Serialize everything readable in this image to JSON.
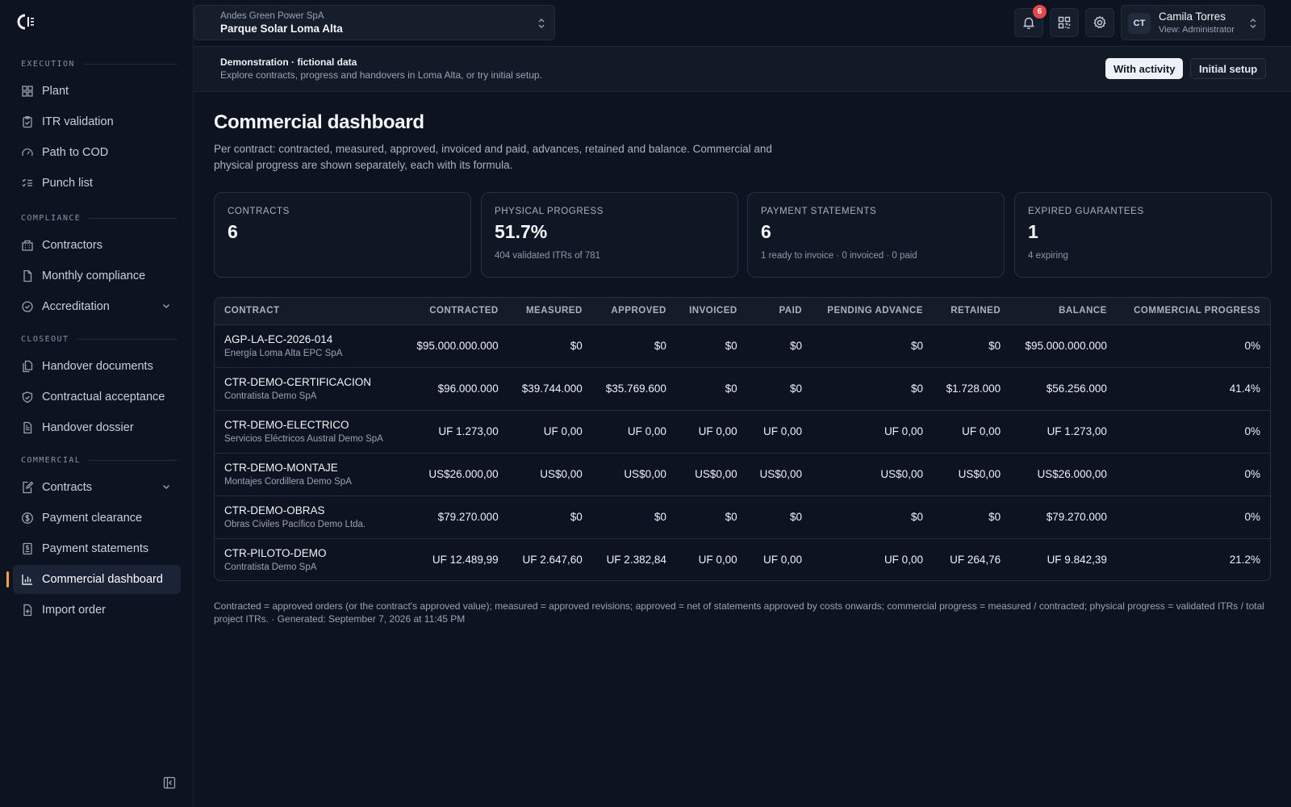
{
  "sidebar": {
    "sections": [
      {
        "title": "EXECUTION",
        "items": [
          {
            "label": "Plant",
            "icon": "grid-icon"
          },
          {
            "label": "ITR validation",
            "icon": "clipboard-check-icon"
          },
          {
            "label": "Path to COD",
            "icon": "gauge-icon"
          },
          {
            "label": "Punch list",
            "icon": "checklist-icon"
          }
        ]
      },
      {
        "title": "COMPLIANCE",
        "items": [
          {
            "label": "Contractors",
            "icon": "building-icon"
          },
          {
            "label": "Monthly compliance",
            "icon": "file-icon"
          },
          {
            "label": "Accreditation",
            "icon": "check-circle-icon"
          }
        ]
      },
      {
        "title": "CLOSEOUT",
        "items": [
          {
            "label": "Handover documents",
            "icon": "documents-icon"
          },
          {
            "label": "Contractual acceptance",
            "icon": "handshake-icon"
          },
          {
            "label": "Handover dossier",
            "icon": "file-text-icon"
          }
        ]
      },
      {
        "title": "COMMERCIAL",
        "items": [
          {
            "label": "Contracts",
            "icon": "file-edit-icon"
          },
          {
            "label": "Payment clearance",
            "icon": "dollar-circle-icon"
          },
          {
            "label": "Payment statements",
            "icon": "receipt-icon"
          },
          {
            "label": "Commercial dashboard",
            "icon": "bar-chart-icon"
          },
          {
            "label": "Import order",
            "icon": "file-plus-icon"
          }
        ]
      }
    ]
  },
  "header": {
    "organization": "Andes Green Power SpA",
    "project": "Parque Solar Loma Alta",
    "notifications_count": "6",
    "user": {
      "initials": "CT",
      "name": "Camila Torres",
      "role": "View: Administrator"
    }
  },
  "banner": {
    "title": "Demonstration · fictional data",
    "text": "Explore contracts, progress and handovers in Loma Alta, or try initial setup.",
    "btn_with_activity": "With activity",
    "btn_initial_setup": "Initial setup"
  },
  "page": {
    "title": "Commercial dashboard",
    "subtitle": "Per contract: contracted, measured, approved, invoiced and paid, advances, retained and balance. Commercial and physical progress are shown separately, each with its formula."
  },
  "cards": [
    {
      "label": "CONTRACTS",
      "value": "6",
      "sub": ""
    },
    {
      "label": "PHYSICAL PROGRESS",
      "value": "51.7%",
      "sub": "404 validated ITRs of 781"
    },
    {
      "label": "PAYMENT STATEMENTS",
      "value": "6",
      "sub": "1 ready to invoice · 0 invoiced · 0 paid"
    },
    {
      "label": "EXPIRED GUARANTEES",
      "value": "1",
      "sub": "4 expiring"
    }
  ],
  "table": {
    "columns": [
      "CONTRACT",
      "CONTRACTED",
      "MEASURED",
      "APPROVED",
      "INVOICED",
      "PAID",
      "PENDING ADVANCE",
      "RETAINED",
      "BALANCE",
      "COMMERCIAL PROGRESS"
    ],
    "rows": [
      {
        "code": "AGP-LA-EC-2026-014",
        "company": "Energía Loma Alta EPC SpA",
        "contracted": "$95.000.000.000",
        "measured": "$0",
        "approved": "$0",
        "invoiced": "$0",
        "paid": "$0",
        "pending_advance": "$0",
        "retained": "$0",
        "balance": "$95.000.000.000",
        "progress": "0%"
      },
      {
        "code": "CTR-DEMO-CERTIFICACION",
        "company": "Contratista Demo SpA",
        "contracted": "$96.000.000",
        "measured": "$39.744.000",
        "approved": "$35.769.600",
        "invoiced": "$0",
        "paid": "$0",
        "pending_advance": "$0",
        "retained": "$1.728.000",
        "balance": "$56.256.000",
        "progress": "41.4%"
      },
      {
        "code": "CTR-DEMO-ELECTRICO",
        "company": "Servicios Eléctricos Austral Demo SpA",
        "contracted": "UF 1.273,00",
        "measured": "UF 0,00",
        "approved": "UF 0,00",
        "invoiced": "UF 0,00",
        "paid": "UF 0,00",
        "pending_advance": "UF 0,00",
        "retained": "UF 0,00",
        "balance": "UF 1.273,00",
        "progress": "0%"
      },
      {
        "code": "CTR-DEMO-MONTAJE",
        "company": "Montajes Cordillera Demo SpA",
        "contracted": "US$26.000,00",
        "measured": "US$0,00",
        "approved": "US$0,00",
        "invoiced": "US$0,00",
        "paid": "US$0,00",
        "pending_advance": "US$0,00",
        "retained": "US$0,00",
        "balance": "US$26.000,00",
        "progress": "0%"
      },
      {
        "code": "CTR-DEMO-OBRAS",
        "company": "Obras Civiles Pacífico Demo Ltda.",
        "contracted": "$79.270.000",
        "measured": "$0",
        "approved": "$0",
        "invoiced": "$0",
        "paid": "$0",
        "pending_advance": "$0",
        "retained": "$0",
        "balance": "$79.270.000",
        "progress": "0%"
      },
      {
        "code": "CTR-PILOTO-DEMO",
        "company": "Contratista Demo SpA",
        "contracted": "UF 12.489,99",
        "measured": "UF 2.647,60",
        "approved": "UF 2.382,84",
        "invoiced": "UF 0,00",
        "paid": "UF 0,00",
        "pending_advance": "UF 0,00",
        "retained": "UF 264,76",
        "balance": "UF 9.842,39",
        "progress": "21.2%"
      }
    ]
  },
  "footnote": "Contracted = approved orders (or the contract's approved value); measured = approved revisions; approved = net of statements approved by costs onwards; commercial progress = measured / contracted; physical progress = validated ITRs / total project ITRs. · Generated: September 7, 2026 at 11:45 PM",
  "colors": {
    "accent": "#f0a629",
    "badge": "#e5484d",
    "background": "#0d1320"
  }
}
